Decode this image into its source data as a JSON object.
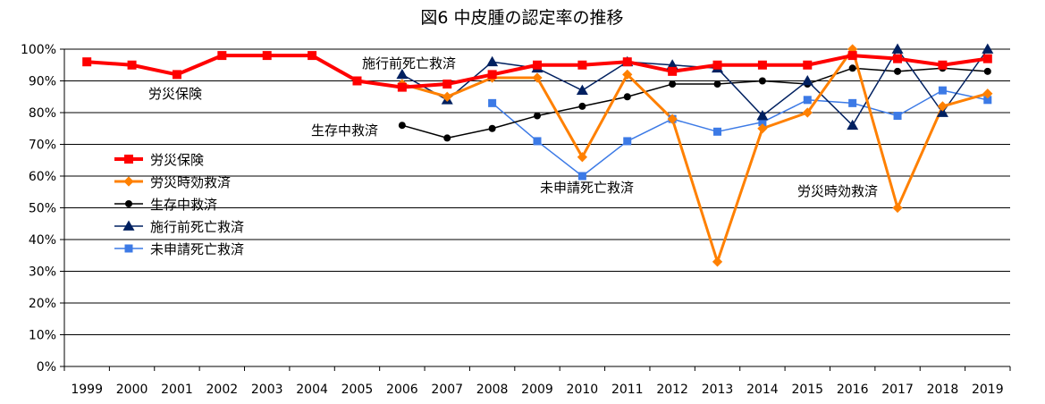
{
  "chart_data": {
    "type": "line",
    "title": "図6 中皮腫の認定率の推移",
    "xlabel": "",
    "ylabel": "",
    "categories": [
      "1999",
      "2000",
      "2001",
      "2002",
      "2003",
      "2004",
      "2005",
      "2006",
      "2007",
      "2008",
      "2009",
      "2010",
      "2011",
      "2012",
      "2013",
      "2014",
      "2015",
      "2016",
      "2017",
      "2018",
      "2019"
    ],
    "y_tick_labels": [
      "0%",
      "10%",
      "20%",
      "30%",
      "40%",
      "50%",
      "60%",
      "70%",
      "80%",
      "90%",
      "100%"
    ],
    "ylim": [
      0,
      100
    ],
    "grid": true,
    "legend_position": "left-center",
    "series": [
      {
        "name": "労災保険",
        "color": "#ff0000",
        "marker": "square",
        "values": [
          96,
          95,
          92,
          98,
          98,
          98,
          90,
          88,
          89,
          92,
          95,
          95,
          96,
          93,
          95,
          95,
          95,
          98,
          97,
          95,
          97
        ]
      },
      {
        "name": "労災時効救済",
        "color": "#ff8000",
        "marker": "diamond",
        "values": [
          null,
          null,
          null,
          null,
          null,
          null,
          null,
          89,
          85,
          91,
          91,
          66,
          92,
          78,
          33,
          75,
          80,
          100,
          50,
          82,
          86
        ]
      },
      {
        "name": "生存中救済",
        "color": "#000000",
        "marker": "circle",
        "values": [
          null,
          null,
          null,
          null,
          null,
          null,
          null,
          76,
          72,
          75,
          79,
          82,
          85,
          89,
          89,
          90,
          89,
          94,
          93,
          94,
          93
        ]
      },
      {
        "name": "施行前死亡救済",
        "color": "#002060",
        "marker": "triangle",
        "values": [
          null,
          null,
          null,
          null,
          null,
          null,
          null,
          92,
          84,
          96,
          94,
          87,
          96,
          95,
          94,
          79,
          90,
          76,
          100,
          80,
          100
        ]
      },
      {
        "name": "未申請死亡救済",
        "color": "#3c7ae6",
        "marker": "square",
        "values": [
          null,
          null,
          null,
          null,
          null,
          null,
          null,
          null,
          null,
          83,
          71,
          60,
          71,
          78,
          74,
          77,
          84,
          83,
          79,
          87,
          84
        ]
      }
    ],
    "annotations": [
      {
        "text": "施行前死亡救済",
        "series": "施行前死亡救済"
      },
      {
        "text": "労災保険",
        "series": "労災保険"
      },
      {
        "text": "生存中救済",
        "series": "生存中救済"
      },
      {
        "text": "未申請死亡救済",
        "series": "未申請死亡救済"
      },
      {
        "text": "労災時効救済",
        "series": "労災時効救済"
      }
    ]
  }
}
